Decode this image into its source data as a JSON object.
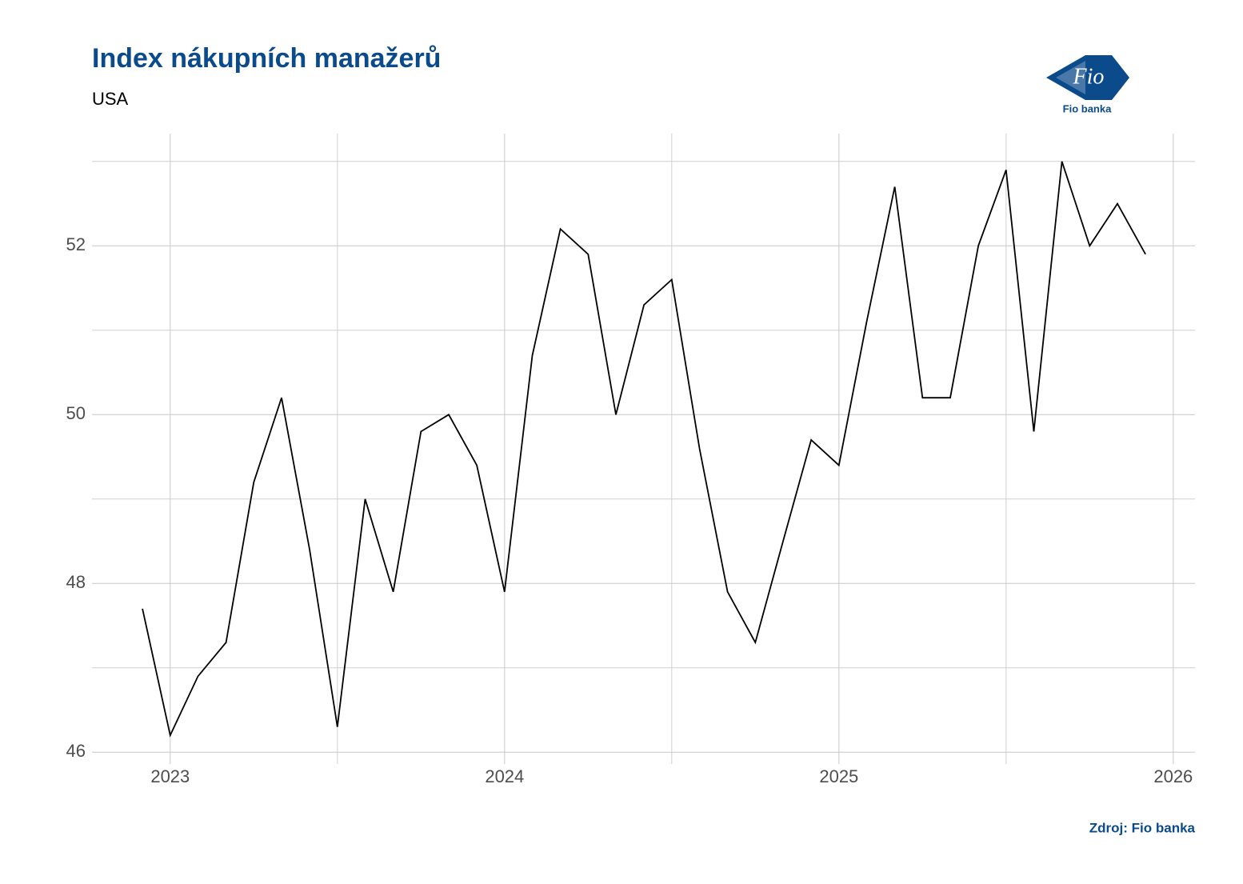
{
  "chart_data": {
    "type": "line",
    "title": "Index nákupních manažerů",
    "subtitle": "USA",
    "source": "Zdroj: Fio banka",
    "logo_text": "Fio",
    "logo_caption": "Fio banka",
    "x": [
      2022.917,
      2023.0,
      2023.083,
      2023.167,
      2023.25,
      2023.333,
      2023.417,
      2023.5,
      2023.583,
      2023.667,
      2023.75,
      2023.833,
      2023.917,
      2024.0,
      2024.083,
      2024.167,
      2024.25,
      2024.333,
      2024.417,
      2024.5,
      2024.583,
      2024.667,
      2024.75,
      2024.833,
      2024.917,
      2025.0,
      2025.083,
      2025.167,
      2025.25,
      2025.333,
      2025.417,
      2025.5,
      2025.583,
      2025.667,
      2025.75,
      2025.833,
      2025.917
    ],
    "series": [
      {
        "color": "#000000",
        "values": [
          47.7,
          46.2,
          46.9,
          47.3,
          49.2,
          50.2,
          48.4,
          46.3,
          49.0,
          47.9,
          49.8,
          50.0,
          49.4,
          47.9,
          50.7,
          52.2,
          51.9,
          50.0,
          51.3,
          51.6,
          49.6,
          47.9,
          47.3,
          48.5,
          49.7,
          49.4,
          51.1,
          52.7,
          50.2,
          50.2,
          52.0,
          52.9,
          49.8,
          53.0,
          52.0,
          52.5,
          51.9
        ]
      }
    ],
    "xlim": [
      2022.766,
      2026.065
    ],
    "xticks": [
      2023,
      2024,
      2025,
      2026
    ],
    "minor_xticks": [
      2023.5,
      2024.5,
      2025.5
    ],
    "ylim": [
      45.86,
      53.33
    ],
    "yticks": [
      46,
      48,
      50,
      52
    ],
    "minor_yticks": [
      47,
      49,
      51,
      53
    ],
    "grid": true
  }
}
